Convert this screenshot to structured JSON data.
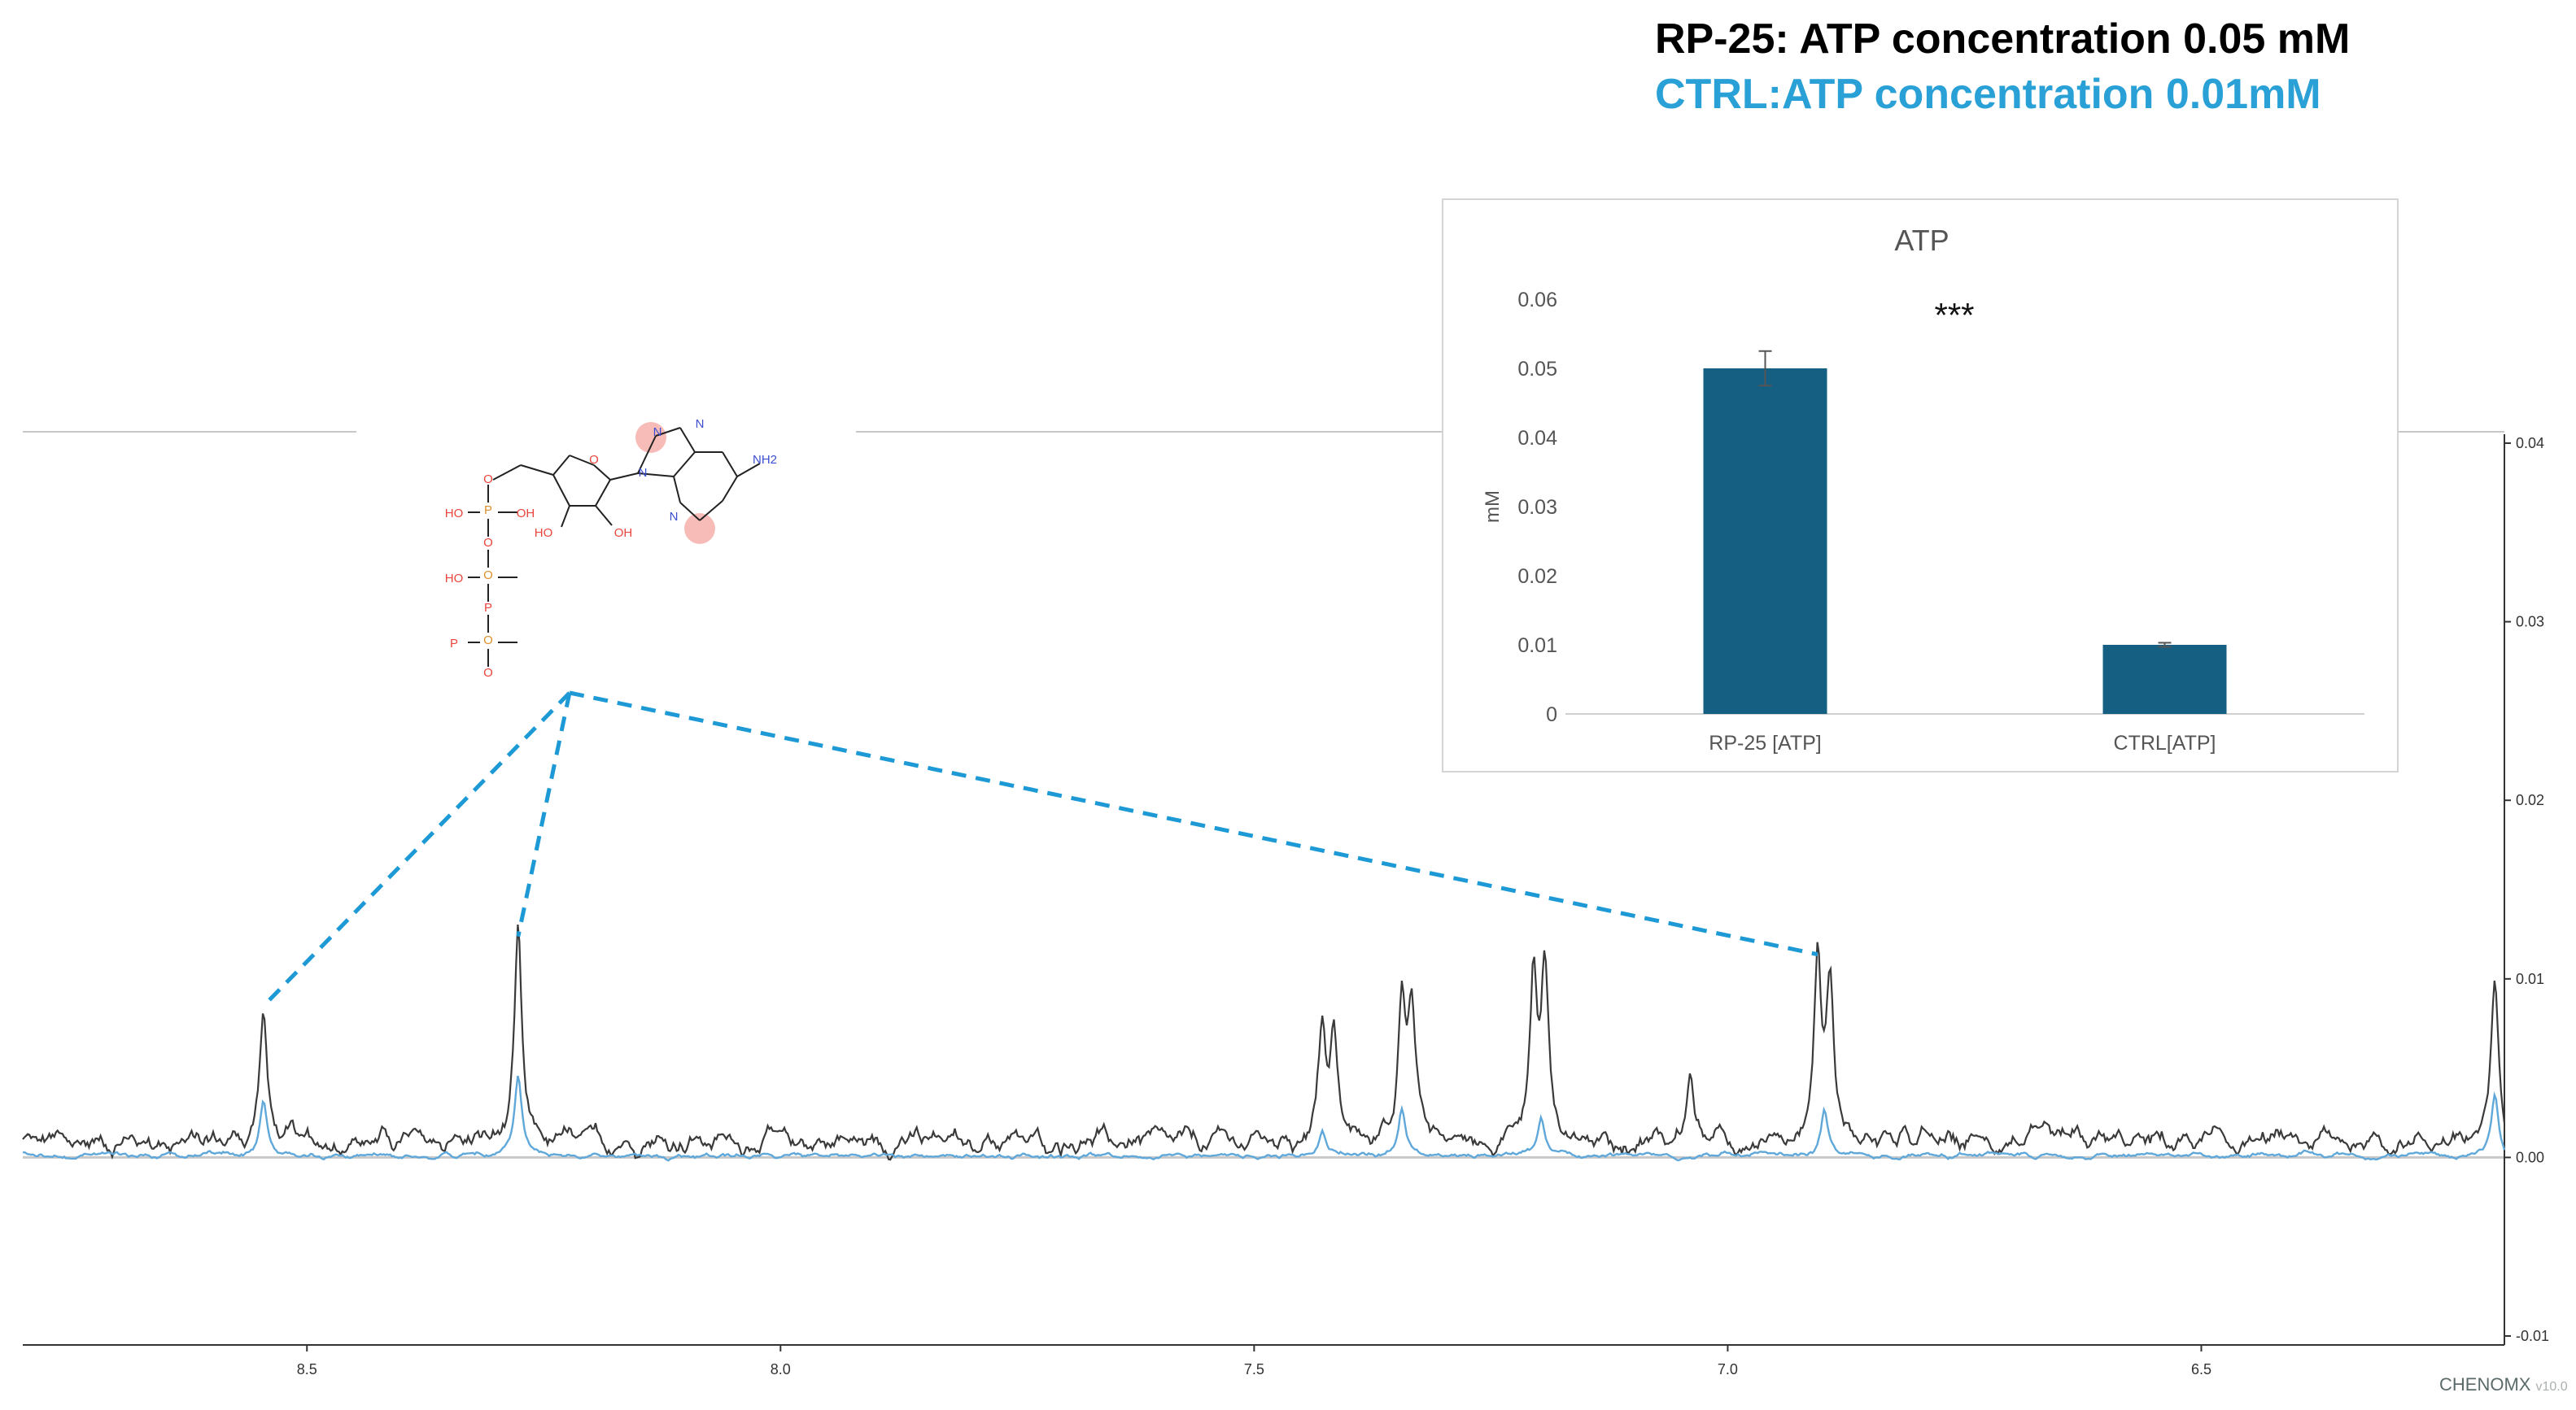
{
  "legend": {
    "rp_label": "RP-25: ATP concentration 0.05 mM",
    "ctrl_label": "CTRL:ATP concentration 0.01mM",
    "rp_color": "#000000",
    "ctrl_color": "#29a0d6"
  },
  "chart_data": [
    {
      "type": "line",
      "xlabel": "",
      "ylabel": "",
      "x_reversed": true,
      "xlim": [
        8.8,
        6.18
      ],
      "ylim": [
        -0.0105,
        0.0405
      ],
      "x_ticks": [
        "8.5",
        "8.0",
        "7.5",
        "7.0",
        "6.5"
      ],
      "x_tick_values": [
        8.5,
        8.0,
        7.5,
        7.0,
        6.5
      ],
      "y_ticks": [
        "0.04",
        "0.03",
        "0.02",
        "0.01",
        "0.00",
        "-0.01"
      ],
      "y_tick_values": [
        0.04,
        0.03,
        0.02,
        0.01,
        0.0,
        -0.01
      ],
      "y_axis_side": "right",
      "series": [
        {
          "color": "#3a3a3a",
          "baseline": 0.0009,
          "peaks": [
            {
              "x": 8.546,
              "y": 0.0082
            },
            {
              "x": 8.277,
              "y": 0.0121
            },
            {
              "x": 7.428,
              "y": 0.0072
            },
            {
              "x": 7.416,
              "y": 0.0066
            },
            {
              "x": 7.344,
              "y": 0.0089
            },
            {
              "x": 7.334,
              "y": 0.0085
            },
            {
              "x": 7.205,
              "y": 0.0101
            },
            {
              "x": 7.193,
              "y": 0.0105
            },
            {
              "x": 7.04,
              "y": 0.0048
            },
            {
              "x": 6.905,
              "y": 0.0111
            },
            {
              "x": 6.892,
              "y": 0.0098
            },
            {
              "x": 6.19,
              "y": 0.0095
            }
          ]
        },
        {
          "color": "#5fa8d9",
          "baseline": 0.0001,
          "peaks": [
            {
              "x": 8.546,
              "y": 0.0031
            },
            {
              "x": 8.277,
              "y": 0.0046
            },
            {
              "x": 7.428,
              "y": 0.0016
            },
            {
              "x": 7.344,
              "y": 0.0028
            },
            {
              "x": 7.197,
              "y": 0.0022
            },
            {
              "x": 6.898,
              "y": 0.0025
            },
            {
              "x": 6.19,
              "y": 0.0035
            }
          ]
        }
      ]
    },
    {
      "type": "bar",
      "title": "ATP",
      "ylabel": "mM",
      "categories": [
        "RP-25 [ATP]",
        "CTRL[ATP]"
      ],
      "values": [
        0.05,
        0.01
      ],
      "errors": [
        0.0025,
        0.0003
      ],
      "ylim": [
        0,
        0.06
      ],
      "y_ticks": [
        "0.06",
        "0.05",
        "0.04",
        "0.03",
        "0.02",
        "0.01",
        "0"
      ],
      "y_tick_values": [
        0.06,
        0.05,
        0.04,
        0.03,
        0.02,
        0.01,
        0
      ],
      "significance": "***",
      "bar_color": "#155f82"
    }
  ],
  "molecule": {
    "labels": [
      "O",
      "P",
      "O",
      "HO",
      "O",
      "P",
      "O",
      "HO",
      "O",
      "P",
      "O",
      "HO",
      "OH",
      "O",
      "N",
      "N",
      "N",
      "N",
      "NH2",
      "HO",
      "OH"
    ]
  },
  "watermark": {
    "brand": "CHENOMX",
    "version": "v10.0"
  }
}
